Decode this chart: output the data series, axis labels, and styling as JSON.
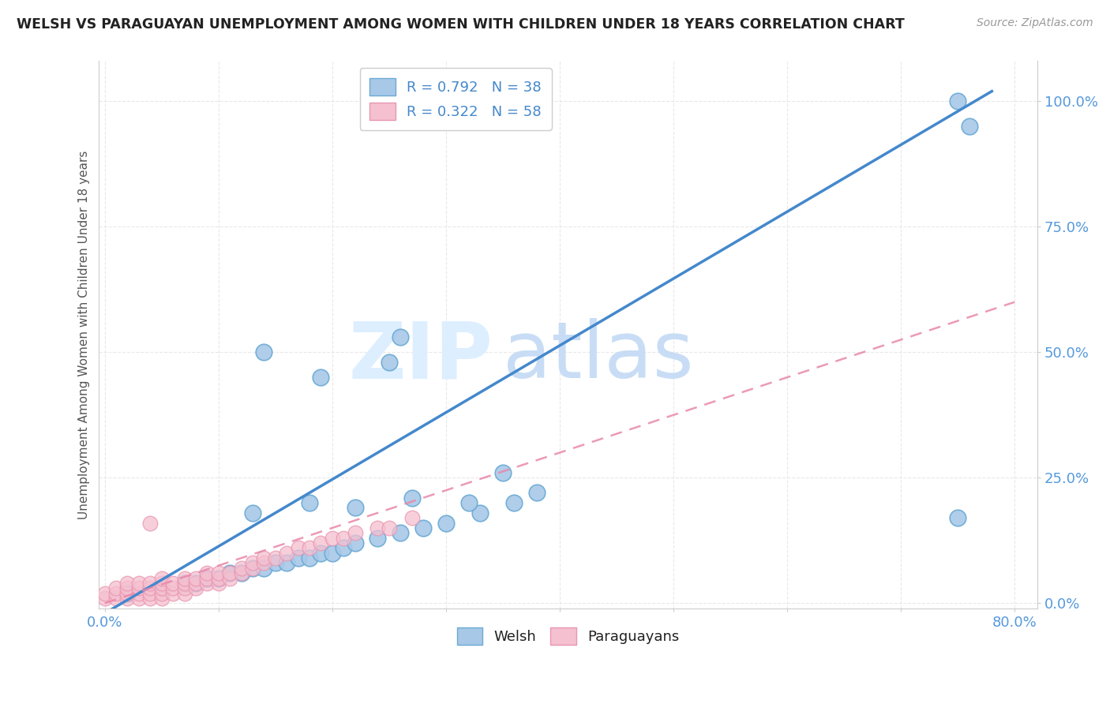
{
  "title": "WELSH VS PARAGUAYAN UNEMPLOYMENT AMONG WOMEN WITH CHILDREN UNDER 18 YEARS CORRELATION CHART",
  "source": "Source: ZipAtlas.com",
  "ylabel": "Unemployment Among Women with Children Under 18 years",
  "xlim": [
    -0.005,
    0.82
  ],
  "ylim": [
    -0.01,
    1.08
  ],
  "xticks": [
    0.0,
    0.1,
    0.2,
    0.3,
    0.4,
    0.5,
    0.6,
    0.7,
    0.8
  ],
  "yticks": [
    0.0,
    0.25,
    0.5,
    0.75,
    1.0
  ],
  "yticklabels": [
    "0.0%",
    "25.0%",
    "50.0%",
    "75.0%",
    "100.0%"
  ],
  "welsh_R": 0.792,
  "welsh_N": 38,
  "paraguayan_R": 0.322,
  "paraguayan_N": 58,
  "welsh_color": "#a8c8e8",
  "welsh_edge_color": "#6aaad4",
  "paraguayan_color": "#f5c0d0",
  "paraguayan_edge_color": "#e896b0",
  "trend_welsh_color": "#4488cc",
  "trend_paraguayan_color": "#e888aa",
  "background_color": "#ffffff",
  "grid_color": "#e8e8e8",
  "watermark_zip": "ZIP",
  "watermark_atlas": "atlas",
  "watermark_color_zip": "#ddeeff",
  "watermark_color_atlas": "#c8ddf0",
  "legend_welsh_label": "Welsh",
  "legend_paraguayan_label": "Paraguayans",
  "welsh_x": [
    0.02,
    0.05,
    0.07,
    0.08,
    0.09,
    0.1,
    0.11,
    0.12,
    0.13,
    0.14,
    0.15,
    0.16,
    0.17,
    0.18,
    0.19,
    0.2,
    0.21,
    0.22,
    0.24,
    0.26,
    0.28,
    0.3,
    0.33,
    0.36,
    0.26,
    0.14,
    0.19,
    0.25,
    0.35,
    0.13,
    0.18,
    0.22,
    0.27,
    0.32,
    0.38,
    0.75,
    0.76,
    0.75
  ],
  "welsh_y": [
    0.02,
    0.03,
    0.04,
    0.04,
    0.05,
    0.05,
    0.06,
    0.06,
    0.07,
    0.07,
    0.08,
    0.08,
    0.09,
    0.09,
    0.1,
    0.1,
    0.11,
    0.12,
    0.13,
    0.14,
    0.15,
    0.16,
    0.18,
    0.2,
    0.53,
    0.5,
    0.45,
    0.48,
    0.26,
    0.18,
    0.2,
    0.19,
    0.21,
    0.2,
    0.22,
    1.0,
    0.95,
    0.17
  ],
  "paraguayan_x": [
    0.0,
    0.0,
    0.01,
    0.01,
    0.01,
    0.02,
    0.02,
    0.02,
    0.02,
    0.03,
    0.03,
    0.03,
    0.03,
    0.04,
    0.04,
    0.04,
    0.04,
    0.05,
    0.05,
    0.05,
    0.05,
    0.05,
    0.06,
    0.06,
    0.06,
    0.07,
    0.07,
    0.07,
    0.07,
    0.08,
    0.08,
    0.08,
    0.09,
    0.09,
    0.09,
    0.1,
    0.1,
    0.1,
    0.11,
    0.11,
    0.12,
    0.12,
    0.13,
    0.13,
    0.14,
    0.14,
    0.15,
    0.16,
    0.17,
    0.18,
    0.19,
    0.2,
    0.21,
    0.22,
    0.24,
    0.25,
    0.27,
    0.04
  ],
  "paraguayan_y": [
    0.01,
    0.02,
    0.01,
    0.02,
    0.03,
    0.01,
    0.02,
    0.03,
    0.04,
    0.01,
    0.02,
    0.03,
    0.04,
    0.01,
    0.02,
    0.03,
    0.04,
    0.01,
    0.02,
    0.03,
    0.04,
    0.05,
    0.02,
    0.03,
    0.04,
    0.02,
    0.03,
    0.04,
    0.05,
    0.03,
    0.04,
    0.05,
    0.04,
    0.05,
    0.06,
    0.04,
    0.05,
    0.06,
    0.05,
    0.06,
    0.06,
    0.07,
    0.07,
    0.08,
    0.08,
    0.09,
    0.09,
    0.1,
    0.11,
    0.11,
    0.12,
    0.13,
    0.13,
    0.14,
    0.15,
    0.15,
    0.17,
    0.16
  ],
  "welsh_line_x0": 0.0,
  "welsh_line_y0": -0.02,
  "welsh_line_x1": 0.78,
  "welsh_line_y1": 1.02,
  "para_line_x0": 0.0,
  "para_line_y0": 0.0,
  "para_line_x1": 0.8,
  "para_line_y1": 0.6
}
